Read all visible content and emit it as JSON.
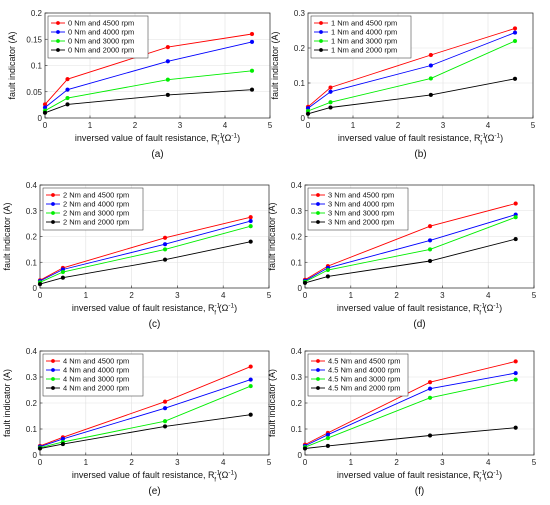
{
  "chart_data": [
    {
      "type": "line",
      "caption": "(a)",
      "xlabel": "inversed value of fault resistance, R",
      "xlabel_sub": "f",
      "xlabel_sup": "-1",
      "xlabel_unit": "(Ω",
      "xlabel_unit_sup": "-1",
      "xlabel_unit_close": ")",
      "ylabel": "fault indicator (A)",
      "xlim": [
        0,
        5
      ],
      "ylim": [
        0,
        0.2
      ],
      "xticks": [
        0,
        1,
        2,
        3,
        4,
        5
      ],
      "xtick_labels": [
        "0",
        "1",
        "2",
        "3",
        "4",
        "5"
      ],
      "yticks": [
        0,
        0.05,
        0.1,
        0.15,
        0.2
      ],
      "ytick_labels": [
        "0",
        "0.05",
        "0.1",
        "0.15",
        "0.2"
      ],
      "grid": true,
      "legend_position": "top-left",
      "x": [
        0,
        0.5,
        2.73,
        4.6
      ],
      "series": [
        {
          "name": "0 Nm and 4500 rpm",
          "color": "#ff0000",
          "values": [
            0.026,
            0.074,
            0.135,
            0.16
          ]
        },
        {
          "name": "0 Nm and 4000 rpm",
          "color": "#0000ff",
          "values": [
            0.02,
            0.054,
            0.108,
            0.145
          ]
        },
        {
          "name": "0 Nm and 3000 rpm",
          "color": "#00ee00",
          "values": [
            0.014,
            0.038,
            0.073,
            0.09
          ]
        },
        {
          "name": "0 Nm and 2000 rpm",
          "color": "#000000",
          "values": [
            0.01,
            0.026,
            0.044,
            0.054
          ]
        }
      ]
    },
    {
      "type": "line",
      "caption": "(b)",
      "xlabel": "inversed value of fault resistance, R",
      "xlabel_sub": "f",
      "xlabel_sup": "-1",
      "xlabel_unit": "(Ω",
      "xlabel_unit_sup": "-1",
      "xlabel_unit_close": ")",
      "ylabel": "fault indicator (A)",
      "xlim": [
        0,
        5
      ],
      "ylim": [
        0,
        0.3
      ],
      "xticks": [
        0,
        1,
        2,
        3,
        4,
        5
      ],
      "xtick_labels": [
        "0",
        "1",
        "2",
        "3",
        "4",
        "5"
      ],
      "yticks": [
        0,
        0.1,
        0.2,
        0.3
      ],
      "ytick_labels": [
        "0",
        "0.1",
        "0.2",
        "0.3"
      ],
      "grid": true,
      "legend_position": "top-left",
      "x": [
        0,
        0.5,
        2.73,
        4.6
      ],
      "series": [
        {
          "name": "1 Nm and 4500 rpm",
          "color": "#ff0000",
          "values": [
            0.032,
            0.087,
            0.18,
            0.256
          ]
        },
        {
          "name": "1 Nm and 4000 rpm",
          "color": "#0000ff",
          "values": [
            0.028,
            0.075,
            0.15,
            0.244
          ]
        },
        {
          "name": "1 Nm and 3000 rpm",
          "color": "#00ee00",
          "values": [
            0.02,
            0.045,
            0.113,
            0.22
          ]
        },
        {
          "name": "1 Nm and 2000 rpm",
          "color": "#000000",
          "values": [
            0.012,
            0.03,
            0.066,
            0.112
          ]
        }
      ]
    },
    {
      "type": "line",
      "caption": "(c)",
      "xlabel": "inversed value of fault resistance, R",
      "xlabel_sub": "f",
      "xlabel_sup": "-1",
      "xlabel_unit": "(Ω",
      "xlabel_unit_sup": "-1",
      "xlabel_unit_close": ")",
      "ylabel": "fault indicator (A)",
      "xlim": [
        0,
        5
      ],
      "ylim": [
        0,
        0.4
      ],
      "xticks": [
        0,
        1,
        2,
        3,
        4,
        5
      ],
      "xtick_labels": [
        "0",
        "1",
        "2",
        "3",
        "4",
        "5"
      ],
      "yticks": [
        0,
        0.1,
        0.2,
        0.3,
        0.4
      ],
      "ytick_labels": [
        "0",
        "0.1",
        "0.2",
        "0.3",
        "0.4"
      ],
      "grid": true,
      "legend_position": "top-left",
      "x": [
        0,
        0.5,
        2.73,
        4.6
      ],
      "series": [
        {
          "name": "2 Nm and 4500 rpm",
          "color": "#ff0000",
          "values": [
            0.03,
            0.078,
            0.195,
            0.275
          ]
        },
        {
          "name": "2 Nm and 4000 rpm",
          "color": "#0000ff",
          "values": [
            0.027,
            0.072,
            0.17,
            0.26
          ]
        },
        {
          "name": "2 Nm and 3000 rpm",
          "color": "#00ee00",
          "values": [
            0.022,
            0.062,
            0.15,
            0.24
          ]
        },
        {
          "name": "2 Nm and 2000 rpm",
          "color": "#000000",
          "values": [
            0.015,
            0.04,
            0.11,
            0.18
          ]
        }
      ]
    },
    {
      "type": "line",
      "caption": "(d)",
      "xlabel": "inversed value of fault resistance, R",
      "xlabel_sub": "f",
      "xlabel_sup": "-1",
      "xlabel_unit": "(Ω",
      "xlabel_unit_sup": "-1",
      "xlabel_unit_close": ")",
      "ylabel": "fault indicator (A)",
      "xlim": [
        0,
        5
      ],
      "ylim": [
        0,
        0.4
      ],
      "xticks": [
        0,
        1,
        2,
        3,
        4,
        5
      ],
      "xtick_labels": [
        "0",
        "1",
        "2",
        "3",
        "4",
        "5"
      ],
      "yticks": [
        0,
        0.1,
        0.2,
        0.3,
        0.4
      ],
      "ytick_labels": [
        "0",
        "0.1",
        "0.2",
        "0.3",
        "0.4"
      ],
      "grid": true,
      "legend_position": "top-left",
      "x": [
        0,
        0.5,
        2.73,
        4.6
      ],
      "series": [
        {
          "name": "3 Nm and 4500 rpm",
          "color": "#ff0000",
          "values": [
            0.032,
            0.085,
            0.24,
            0.328
          ]
        },
        {
          "name": "3 Nm and 4000 rpm",
          "color": "#0000ff",
          "values": [
            0.028,
            0.078,
            0.185,
            0.285
          ]
        },
        {
          "name": "3 Nm and 3000 rpm",
          "color": "#00ee00",
          "values": [
            0.024,
            0.07,
            0.15,
            0.275
          ]
        },
        {
          "name": "3 Nm and 2000 rpm",
          "color": "#000000",
          "values": [
            0.02,
            0.045,
            0.105,
            0.19
          ]
        }
      ]
    },
    {
      "type": "line",
      "caption": "(e)",
      "xlabel": "inversed value of fault resistance, R",
      "xlabel_sub": "f",
      "xlabel_sup": "-1",
      "xlabel_unit": "(Ω",
      "xlabel_unit_sup": "-1",
      "xlabel_unit_close": ")",
      "ylabel": "fault indicator (A)",
      "xlim": [
        0,
        5
      ],
      "ylim": [
        0,
        0.4
      ],
      "xticks": [
        0,
        1,
        2,
        3,
        4,
        5
      ],
      "xtick_labels": [
        "0",
        "1",
        "2",
        "3",
        "4",
        "5"
      ],
      "yticks": [
        0,
        0.1,
        0.2,
        0.3,
        0.4
      ],
      "ytick_labels": [
        "0",
        "0.1",
        "0.2",
        "0.3",
        "0.4"
      ],
      "grid": true,
      "legend_position": "top-left",
      "x": [
        0,
        0.5,
        2.73,
        4.6
      ],
      "series": [
        {
          "name": "4 Nm and 4500 rpm",
          "color": "#ff0000",
          "values": [
            0.035,
            0.068,
            0.205,
            0.34
          ]
        },
        {
          "name": "4 Nm and 4000 rpm",
          "color": "#0000ff",
          "values": [
            0.032,
            0.062,
            0.18,
            0.29
          ]
        },
        {
          "name": "4 Nm and 3000 rpm",
          "color": "#00ee00",
          "values": [
            0.028,
            0.05,
            0.13,
            0.265
          ]
        },
        {
          "name": "4 Nm and 2000 rpm",
          "color": "#000000",
          "values": [
            0.025,
            0.042,
            0.11,
            0.155
          ]
        }
      ]
    },
    {
      "type": "line",
      "caption": "(f)",
      "xlabel": "inversed value of fault resistance, R",
      "xlabel_sub": "f",
      "xlabel_sup": "-1",
      "xlabel_unit": "(Ω",
      "xlabel_unit_sup": "-1",
      "xlabel_unit_close": ")",
      "ylabel": "fault indicator (A)",
      "xlim": [
        0,
        5
      ],
      "ylim": [
        0,
        0.4
      ],
      "xticks": [
        0,
        1,
        2,
        3,
        4,
        5
      ],
      "xtick_labels": [
        "0",
        "1",
        "2",
        "3",
        "4",
        "5"
      ],
      "yticks": [
        0,
        0.1,
        0.2,
        0.3,
        0.4
      ],
      "ytick_labels": [
        "0",
        "0.1",
        "0.2",
        "0.3",
        "0.4"
      ],
      "grid": true,
      "legend_position": "top-left",
      "x": [
        0,
        0.5,
        2.73,
        4.6
      ],
      "series": [
        {
          "name": "4.5 Nm and 4500 rpm",
          "color": "#ff0000",
          "values": [
            0.04,
            0.085,
            0.28,
            0.36
          ]
        },
        {
          "name": "4.5 Nm and 4000 rpm",
          "color": "#0000ff",
          "values": [
            0.035,
            0.078,
            0.255,
            0.315
          ]
        },
        {
          "name": "4.5 Nm and 3000 rpm",
          "color": "#00ee00",
          "values": [
            0.03,
            0.065,
            0.22,
            0.29
          ]
        },
        {
          "name": "4.5 Nm and 2000 rpm",
          "color": "#000000",
          "values": [
            0.025,
            0.035,
            0.075,
            0.105
          ]
        }
      ]
    }
  ]
}
